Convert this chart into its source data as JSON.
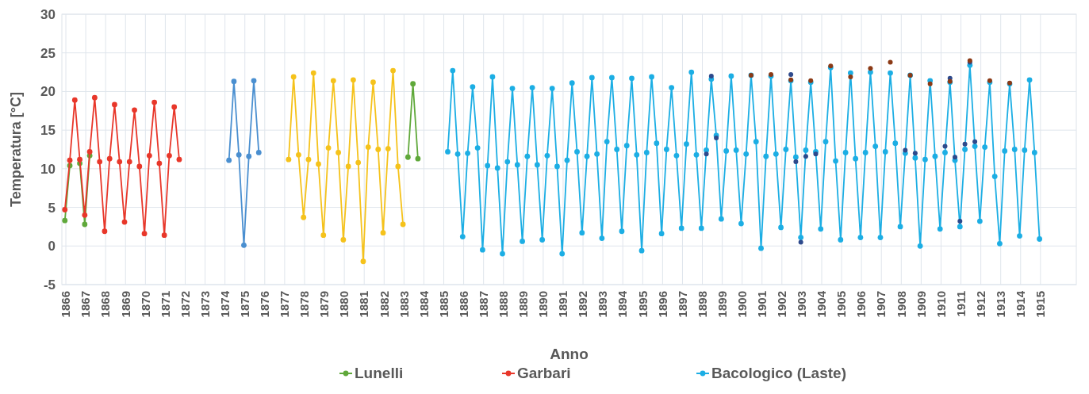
{
  "chart_data": {
    "type": "line",
    "xlabel": "Anno",
    "ylabel": "Temperatura [°C]",
    "xlim": [
      1865.8,
      1916.8
    ],
    "xticks": [
      1866,
      1867,
      1868,
      1869,
      1870,
      1871,
      1872,
      1873,
      1874,
      1875,
      1876,
      1877,
      1878,
      1879,
      1880,
      1881,
      1882,
      1883,
      1884,
      1885,
      1886,
      1887,
      1888,
      1889,
      1890,
      1891,
      1892,
      1893,
      1894,
      1895,
      1896,
      1897,
      1898,
      1899,
      1900,
      1901,
      1902,
      1903,
      1904,
      1905,
      1906,
      1907,
      1908,
      1909,
      1910,
      1911,
      1912,
      1913,
      1914,
      1915
    ],
    "ylim": [
      -5,
      30
    ],
    "yticks": [
      -5,
      0,
      5,
      10,
      15,
      20,
      25,
      30
    ],
    "grid": true,
    "legend": "bottom",
    "marker": "circle",
    "line_style": "solid",
    "series": [
      {
        "name": "Lunelli",
        "color": "#5fa83a",
        "x": [
          1865.95,
          1866.2,
          1866.45,
          1866.7,
          1866.95,
          1867.2,
          1875,
          1883.2,
          1883.45,
          1883.7
        ],
        "values": [
          3.3,
          10.4,
          null,
          10.7,
          2.8,
          11.7,
          null,
          11.5,
          21.0,
          11.3
        ]
      },
      {
        "name": "Garbari",
        "color": "#e8372a",
        "x": [
          1865.95,
          1866.2,
          1866.45,
          1866.7,
          1866.95,
          1867.2,
          1867.45,
          1867.7,
          1867.95,
          1868.2,
          1868.45,
          1868.7,
          1868.95,
          1869.2,
          1869.45,
          1869.7,
          1869.95,
          1870.2,
          1870.45,
          1870.7,
          1870.95,
          1871.2,
          1871.45,
          1871.7
        ],
        "values": [
          4.7,
          11.1,
          18.9,
          11.2,
          4.0,
          12.2,
          19.2,
          10.9,
          1.9,
          11.3,
          18.3,
          10.9,
          3.1,
          10.9,
          17.6,
          10.3,
          1.6,
          11.7,
          18.6,
          10.7,
          1.4,
          11.7,
          18.0,
          11.2
        ]
      },
      {
        "type": "line",
        "color": "#4a8fd0",
        "x": [
          1874.2,
          1874.45,
          1874.7,
          1874.95,
          1875.2,
          1875.45,
          1875.7
        ],
        "values": [
          11.1,
          21.3,
          11.8,
          0.1,
          11.6,
          21.4,
          12.1
        ]
      },
      {
        "type": "line",
        "color": "#f5c21b",
        "x": [
          1877.2,
          1877.45,
          1877.7,
          1877.95,
          1878.2,
          1878.45,
          1878.7,
          1878.95,
          1879.2,
          1879.45,
          1879.7,
          1879.95,
          1880.2,
          1880.45,
          1880.7,
          1880.95,
          1881.2,
          1881.45,
          1881.7,
          1881.95,
          1882.2,
          1882.45,
          1882.7,
          1882.95
        ],
        "values": [
          11.2,
          21.9,
          11.8,
          3.7,
          11.2,
          22.4,
          10.6,
          1.4,
          12.7,
          21.4,
          12.1,
          0.8,
          10.3,
          21.5,
          10.8,
          -2.0,
          12.8,
          21.2,
          12.5,
          1.7,
          12.6,
          22.7,
          10.3,
          2.8
        ]
      },
      {
        "name": "Bacologico (Laste)",
        "color": "#1caee4",
        "x": [
          1885.2,
          1885.45,
          1885.7,
          1885.95,
          1886.2,
          1886.45,
          1886.7,
          1886.95,
          1887.2,
          1887.45,
          1887.7,
          1887.95,
          1888.2,
          1888.45,
          1888.7,
          1888.95,
          1889.2,
          1889.45,
          1889.7,
          1889.95,
          1890.2,
          1890.45,
          1890.7,
          1890.95,
          1891.2,
          1891.45,
          1891.7,
          1891.95,
          1892.2,
          1892.45,
          1892.7,
          1892.95,
          1893.2,
          1893.45,
          1893.7,
          1893.95,
          1894.2,
          1894.45,
          1894.7,
          1894.95,
          1895.2,
          1895.45,
          1895.7,
          1895.95,
          1896.2,
          1896.45,
          1896.7,
          1896.95,
          1897.2,
          1897.45,
          1897.7,
          1897.95,
          1898.2,
          1898.45,
          1898.7,
          1898.95,
          1899.2,
          1899.45,
          1899.7,
          1899.95,
          1900.2,
          1900.45,
          1900.7,
          1900.95,
          1901.2,
          1901.45,
          1901.7,
          1901.95,
          1902.2,
          1902.45,
          1902.7,
          1902.95,
          1903.2,
          1903.45,
          1903.7,
          1903.95,
          1904.2,
          1904.45,
          1904.7,
          1904.95,
          1905.2,
          1905.45,
          1905.7,
          1905.95,
          1906.2,
          1906.45,
          1906.7,
          1906.95,
          1907.2,
          1907.45,
          1907.7,
          1907.95,
          1908.2,
          1908.45,
          1908.7,
          1908.95,
          1909.2,
          1909.45,
          1909.7,
          1909.95,
          1910.2,
          1910.45,
          1910.7,
          1910.95,
          1911.2,
          1911.45,
          1911.7,
          1911.95,
          1912.2,
          1912.45,
          1912.7,
          1912.95,
          1913.2,
          1913.45,
          1913.7,
          1913.95,
          1914.2,
          1914.45,
          1914.7,
          1914.95
        ],
        "values": [
          12.2,
          22.7,
          11.9,
          1.2,
          12.0,
          20.6,
          12.7,
          -0.5,
          10.4,
          21.9,
          10.1,
          -1.0,
          10.9,
          20.4,
          10.5,
          0.6,
          11.6,
          20.5,
          10.5,
          0.8,
          11.7,
          20.4,
          10.3,
          -1.0,
          11.1,
          21.1,
          12.2,
          1.7,
          11.6,
          21.8,
          11.9,
          1.0,
          13.5,
          21.8,
          12.5,
          1.9,
          13.0,
          21.7,
          11.8,
          -0.6,
          12.1,
          21.9,
          13.3,
          1.6,
          12.5,
          20.5,
          11.7,
          2.3,
          13.2,
          22.5,
          11.8,
          2.3,
          12.4,
          21.6,
          14.3,
          3.5,
          12.3,
          22.0,
          12.4,
          2.9,
          11.9,
          22.1,
          13.5,
          -0.3,
          11.6,
          22.0,
          11.9,
          2.4,
          12.5,
          21.4,
          11.5,
          1.1,
          12.4,
          21.2,
          12.2,
          2.2,
          13.5,
          23.1,
          11.0,
          0.8,
          12.1,
          22.4,
          11.3,
          1.1,
          12.1,
          22.5,
          12.9,
          1.1,
          12.2,
          22.4,
          13.3,
          2.5,
          12.0,
          22.1,
          11.4,
          0.0,
          11.2,
          21.4,
          11.6,
          2.2,
          12.1,
          21.2,
          11.1,
          2.5,
          12.5,
          23.4,
          12.9,
          3.2,
          12.8,
          21.2,
          9.0,
          0.3,
          12.3,
          21.0,
          12.5,
          1.3,
          12.4,
          21.5,
          12.1,
          0.9
        ]
      },
      {
        "type": "scatter",
        "color": "#2e4a8c",
        "x": [
          1898.2,
          1898.45,
          1898.7,
          1902.45,
          1902.7,
          1902.95,
          1903.2,
          1903.7,
          1908.2,
          1908.7,
          1910.2,
          1910.45,
          1910.7,
          1910.95,
          1911.2,
          1911.45,
          1911.7
        ],
        "values": [
          11.9,
          22.0,
          14.0,
          22.2,
          10.9,
          0.5,
          11.6,
          11.9,
          12.4,
          12.0,
          12.9,
          21.7,
          11.5,
          3.2,
          13.2,
          23.8,
          13.5
        ]
      },
      {
        "type": "scatter",
        "color": "#8b3a16",
        "x": [
          1900.45,
          1901.45,
          1902.45,
          1903.45,
          1904.45,
          1905.45,
          1906.45,
          1907.45,
          1908.45,
          1909.45,
          1910.45,
          1911.45,
          1912.45,
          1913.45
        ],
        "values": [
          22.1,
          22.2,
          21.5,
          21.4,
          23.3,
          21.9,
          23.0,
          23.8,
          22.1,
          21.0,
          21.3,
          24.0,
          21.4,
          21.1
        ]
      }
    ]
  }
}
